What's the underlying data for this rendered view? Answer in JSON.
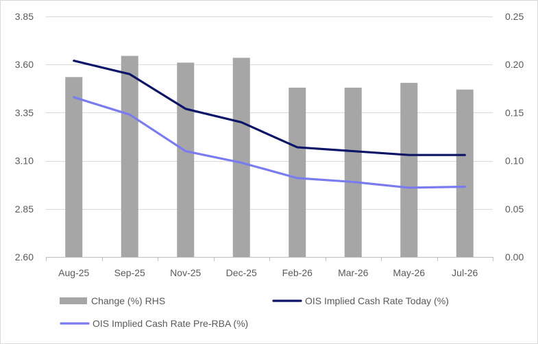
{
  "chart_data": {
    "type": "bar+line",
    "categories": [
      "Aug-25",
      "Sep-25",
      "Nov-25",
      "Dec-25",
      "Feb-26",
      "Mar-26",
      "May-26",
      "Jul-26"
    ],
    "left_axis": {
      "min": 2.6,
      "max": 3.85,
      "ticks": [
        "3.85",
        "3.60",
        "3.35",
        "3.10",
        "2.85",
        "2.60"
      ],
      "tick_values": [
        3.85,
        3.6,
        3.35,
        3.1,
        2.85,
        2.6
      ]
    },
    "right_axis": {
      "min": 0.0,
      "max": 0.25,
      "ticks": [
        "0.25",
        "0.20",
        "0.15",
        "0.10",
        "0.05",
        "0.00"
      ],
      "tick_values": [
        0.25,
        0.2,
        0.15,
        0.1,
        0.05,
        0.0
      ]
    },
    "series": [
      {
        "name": "Change (%) RHS",
        "kind": "bar",
        "axis": "right",
        "color": "#a6a6a6",
        "values": [
          0.187,
          0.209,
          0.202,
          0.207,
          0.176,
          0.176,
          0.181,
          0.174
        ]
      },
      {
        "name": "OIS Implied Cash Rate Today (%)",
        "kind": "line",
        "axis": "left",
        "color": "#0c1467",
        "values": [
          3.62,
          3.55,
          3.37,
          3.3,
          3.17,
          3.15,
          3.13,
          3.13
        ]
      },
      {
        "name": "OIS Implied Cash Rate Pre-RBA (%)",
        "kind": "line",
        "axis": "left",
        "color": "#7b7bf0",
        "values": [
          3.43,
          3.34,
          3.15,
          3.09,
          3.01,
          2.99,
          2.96,
          2.965
        ]
      }
    ],
    "grid": true,
    "legend": "bottom"
  }
}
